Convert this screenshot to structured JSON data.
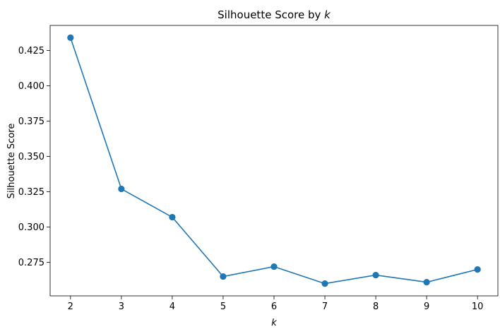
{
  "chart_data": {
    "type": "line",
    "title_prefix": "Silhouette Score by ",
    "title_var": "k",
    "xlabel": "k",
    "ylabel": "Silhouette Score",
    "x": [
      2,
      3,
      4,
      5,
      6,
      7,
      8,
      9,
      10
    ],
    "series": [
      {
        "values": [
          0.434,
          0.327,
          0.307,
          0.265,
          0.272,
          0.26,
          0.266,
          0.261,
          0.27
        ],
        "color": "#1f77b4",
        "marker": "circle"
      }
    ],
    "xticks": [
      "2",
      "3",
      "4",
      "5",
      "6",
      "7",
      "8",
      "9",
      "10"
    ],
    "yticks": [
      "0.275",
      "0.300",
      "0.325",
      "0.350",
      "0.375",
      "0.400",
      "0.425"
    ],
    "xlim": [
      1.6,
      10.4
    ],
    "ylim": [
      0.2513,
      0.4427
    ],
    "grid": false
  }
}
